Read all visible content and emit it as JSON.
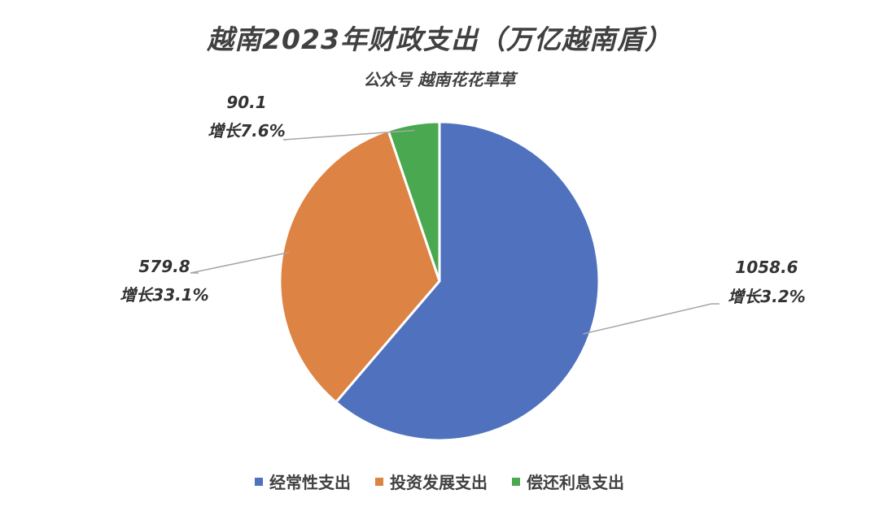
{
  "chart_data": {
    "type": "pie",
    "title": "越南2023年财政支出（万亿越南盾）",
    "subtitle": "公众号 越南花花草草",
    "categories": [
      "经常性支出",
      "投资发展支出",
      "偿还利息支出"
    ],
    "values": [
      1058.6,
      579.8,
      90.1
    ],
    "growth_labels": [
      "增长3.2%",
      "增长33.1%",
      "增长7.6%"
    ],
    "colors": [
      "#4F71BE",
      "#DD8344",
      "#4AA851"
    ],
    "legend_position": "bottom"
  }
}
